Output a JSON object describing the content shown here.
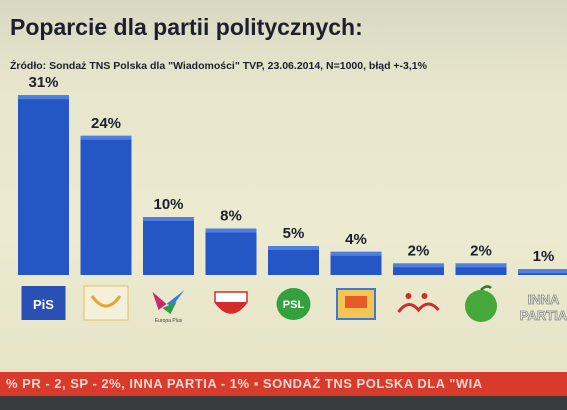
{
  "title": "Poparcie dla partii politycznych:",
  "source": "Źródło: Sondaż TNS Polska dla \"Wiadomości\" TVP, 23.06.2014, N=1000, błąd +-3,1%",
  "chart_data": {
    "type": "bar",
    "title": "Poparcie dla partii politycznych:",
    "categories": [
      "PiS",
      "PO",
      "Europa Plus",
      "SLD",
      "PSL",
      "Nowa Prawica",
      "Solidarna Polska",
      "Polska Razem",
      "INNA PARTIA"
    ],
    "values": [
      31,
      24,
      10,
      8,
      5,
      4,
      2,
      2,
      1
    ],
    "value_labels": [
      "31%",
      "24%",
      "10%",
      "8%",
      "5%",
      "4%",
      "2%",
      "2%",
      "1%"
    ],
    "ylim": [
      0,
      31
    ],
    "grid": false,
    "bar_color": "#2456c6",
    "logo_texts": [
      "PiS",
      "",
      "Europa Plus",
      "",
      "PSL",
      "",
      "",
      "",
      "INNA PARTIA"
    ]
  },
  "ticker": {
    "text": "% PR - 2, SP - 2%, INNA PARTIA - 1% ▪ SONDAŻ TNS POLSKA DLA \"WIA"
  },
  "colors": {
    "accent": "#2456c6",
    "ticker_bg": "#d83a2c",
    "psl_green": "#33a23e",
    "sld_red": "#d42b2b"
  }
}
